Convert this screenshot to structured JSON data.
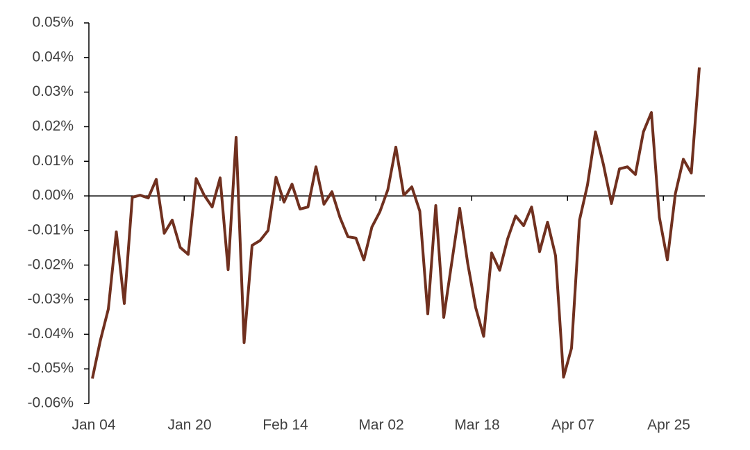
{
  "chart_data": {
    "type": "line",
    "categories": [
      "Jan 04",
      null,
      null,
      null,
      null,
      null,
      null,
      null,
      null,
      null,
      null,
      null,
      "Jan 20",
      null,
      null,
      null,
      null,
      null,
      null,
      null,
      null,
      null,
      null,
      null,
      "Feb 14",
      null,
      null,
      null,
      null,
      null,
      null,
      null,
      null,
      null,
      null,
      null,
      "Mar 02",
      null,
      null,
      null,
      null,
      null,
      null,
      null,
      null,
      null,
      null,
      null,
      "Mar 18",
      null,
      null,
      null,
      null,
      null,
      null,
      null,
      null,
      null,
      null,
      null,
      "Apr 07",
      null,
      null,
      null,
      null,
      null,
      null,
      null,
      null,
      null,
      null,
      null,
      "Apr 25",
      null,
      null,
      null,
      null
    ],
    "values": [
      -0.0528,
      -0.0418,
      -0.0327,
      -0.0104,
      -0.0311,
      -0.0004,
      0.0002,
      -0.0006,
      0.0048,
      -0.0108,
      -0.007,
      -0.0149,
      -0.0169,
      0.005,
      0.0002,
      -0.0032,
      0.0052,
      -0.0213,
      0.0169,
      -0.0424,
      -0.0143,
      -0.0129,
      -0.01,
      0.0054,
      -0.0018,
      0.0034,
      -0.0038,
      -0.0032,
      0.0084,
      -0.0024,
      0.0012,
      -0.0062,
      -0.0118,
      -0.0122,
      -0.0185,
      -0.009,
      -0.0046,
      0.0018,
      0.0141,
      0.0002,
      0.0026,
      -0.0044,
      -0.0341,
      -0.0028,
      -0.0351,
      -0.0193,
      -0.0036,
      -0.0195,
      -0.0323,
      -0.0406,
      -0.0165,
      -0.0215,
      -0.0124,
      -0.0058,
      -0.0086,
      -0.0032,
      -0.0161,
      -0.0076,
      -0.0173,
      -0.0524,
      -0.044,
      -0.007,
      0.0032,
      0.0185,
      0.009,
      -0.0022,
      0.0078,
      0.0084,
      0.0062,
      0.0185,
      0.0241,
      -0.0062,
      -0.0185,
      0.0006,
      0.0106,
      0.0066,
      0.0371
    ],
    "color": "#70301f",
    "ylim": [
      -0.06,
      0.05
    ],
    "yticks": [
      {
        "value": -0.06,
        "label": "-0.06%"
      },
      {
        "value": -0.05,
        "label": "-0.05%"
      },
      {
        "value": -0.04,
        "label": "-0.04%"
      },
      {
        "value": -0.03,
        "label": "-0.03%"
      },
      {
        "value": -0.02,
        "label": "-0.02%"
      },
      {
        "value": -0.01,
        "label": "-0.01%"
      },
      {
        "value": 0,
        "label": "0.00%"
      },
      {
        "value": 0.01,
        "label": "0.01%"
      },
      {
        "value": 0.02,
        "label": "0.02%"
      },
      {
        "value": 0.03,
        "label": "0.03%"
      },
      {
        "value": 0.04,
        "label": "0.04%"
      },
      {
        "value": 0.05,
        "label": "0.05%"
      }
    ]
  }
}
